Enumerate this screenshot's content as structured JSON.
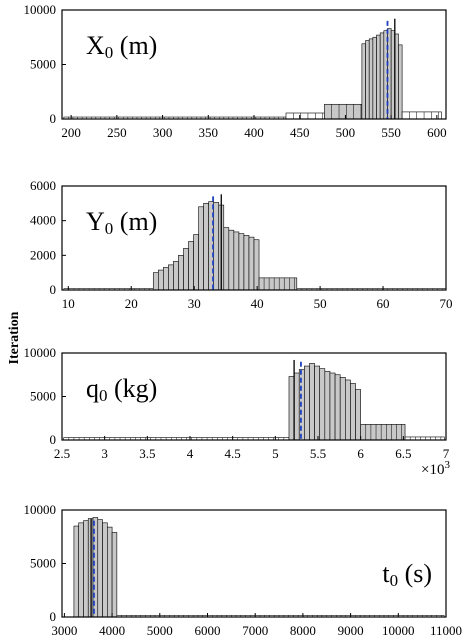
{
  "ylabel": "Iteration",
  "colors": {
    "bar_fill": "#c8c8c8",
    "bar_fill_light": "#ffffff",
    "mean_line": "#000000",
    "true_line": "#1f3fbf",
    "frame": "#000000"
  },
  "chart_data": [
    {
      "type": "bar",
      "title_main": "X",
      "title_sub": "0",
      "title_unit": " (m)",
      "title_pos": "top-left",
      "xlim": [
        190,
        610
      ],
      "ylim": [
        0,
        10000
      ],
      "xticks": [
        200,
        250,
        300,
        350,
        400,
        450,
        500,
        550,
        600
      ],
      "xtick_labels": [
        "200",
        "250",
        "300",
        "350",
        "400",
        "450",
        "500",
        "550",
        "600"
      ],
      "yticks": [
        0,
        5000,
        10000
      ],
      "ytick_labels": [
        "0",
        "5000",
        "10000"
      ],
      "bins": [
        {
          "x0": 192,
          "x1": 435,
          "count": 180,
          "step": 5
        },
        {
          "x0": 435,
          "x1": 477,
          "count": 550,
          "step": 8
        },
        {
          "x0": 477,
          "x1": 518,
          "count": 1350,
          "step": 8
        },
        {
          "x0": 518,
          "x1": 522,
          "count": 6900
        },
        {
          "x0": 522,
          "x1": 526,
          "count": 7200
        },
        {
          "x0": 526,
          "x1": 530,
          "count": 7350
        },
        {
          "x0": 530,
          "x1": 534,
          "count": 7500
        },
        {
          "x0": 534,
          "x1": 538,
          "count": 7700
        },
        {
          "x0": 538,
          "x1": 542,
          "count": 7900
        },
        {
          "x0": 542,
          "x1": 546,
          "count": 8100
        },
        {
          "x0": 546,
          "x1": 550,
          "count": 8300
        },
        {
          "x0": 550,
          "x1": 554,
          "count": 8100
        },
        {
          "x0": 554,
          "x1": 558,
          "count": 7800
        },
        {
          "x0": 558,
          "x1": 562,
          "count": 6800
        },
        {
          "x0": 562,
          "x1": 605,
          "count": 650,
          "step": 8
        }
      ],
      "true_value": 546,
      "mean_value": 554
    },
    {
      "type": "bar",
      "title_main": "Y",
      "title_sub": "0",
      "title_unit": " (m)",
      "title_pos": "top-left",
      "xlim": [
        9,
        70
      ],
      "ylim": [
        0,
        6000
      ],
      "xticks": [
        10,
        20,
        30,
        40,
        50,
        60,
        70
      ],
      "xtick_labels": [
        "10",
        "20",
        "30",
        "40",
        "50",
        "60",
        "70"
      ],
      "yticks": [
        0,
        2000,
        4000,
        6000
      ],
      "ytick_labels": [
        "0",
        "2000",
        "4000",
        "6000"
      ],
      "bins": [
        {
          "x0": 9.3,
          "x1": 23.5,
          "count": 80,
          "step": 0.8
        },
        {
          "x0": 23.5,
          "x1": 24.3,
          "count": 1000
        },
        {
          "x0": 24.3,
          "x1": 25.1,
          "count": 1150
        },
        {
          "x0": 25.1,
          "x1": 25.9,
          "count": 1300
        },
        {
          "x0": 25.9,
          "x1": 26.7,
          "count": 1450
        },
        {
          "x0": 26.7,
          "x1": 27.5,
          "count": 1650
        },
        {
          "x0": 27.5,
          "x1": 28.3,
          "count": 2000
        },
        {
          "x0": 28.3,
          "x1": 29.1,
          "count": 2400
        },
        {
          "x0": 29.1,
          "x1": 29.9,
          "count": 2800
        },
        {
          "x0": 29.9,
          "x1": 30.7,
          "count": 3200
        },
        {
          "x0": 30.7,
          "x1": 31.5,
          "count": 4800
        },
        {
          "x0": 31.5,
          "x1": 32.3,
          "count": 5000
        },
        {
          "x0": 32.3,
          "x1": 33.1,
          "count": 5100
        },
        {
          "x0": 33.1,
          "x1": 33.9,
          "count": 5050
        },
        {
          "x0": 33.9,
          "x1": 34.7,
          "count": 4900
        },
        {
          "x0": 34.7,
          "x1": 35.5,
          "count": 3600
        },
        {
          "x0": 35.5,
          "x1": 36.3,
          "count": 3450
        },
        {
          "x0": 36.3,
          "x1": 37.1,
          "count": 3350
        },
        {
          "x0": 37.1,
          "x1": 37.9,
          "count": 3250
        },
        {
          "x0": 37.9,
          "x1": 38.7,
          "count": 3150
        },
        {
          "x0": 38.7,
          "x1": 39.5,
          "count": 3050
        },
        {
          "x0": 39.5,
          "x1": 40.3,
          "count": 2900
        },
        {
          "x0": 40.3,
          "x1": 46.3,
          "count": 700,
          "step": 0.8
        },
        {
          "x0": 46.3,
          "x1": 70.0,
          "count": 80,
          "step": 0.8
        }
      ],
      "true_value": 33.0,
      "mean_value": 34.3
    },
    {
      "type": "bar",
      "title_main": "q",
      "title_sub": "0",
      "title_unit": " (kg)",
      "title_pos": "top-left",
      "xlim": [
        2.5,
        7
      ],
      "ylim": [
        0,
        10000
      ],
      "xticks": [
        2.5,
        3,
        3.5,
        4,
        4.5,
        5,
        5.5,
        6,
        6.5,
        7
      ],
      "xtick_labels": [
        "2.5",
        "3",
        "3.5",
        "4",
        "4.5",
        "5",
        "5.5",
        "6",
        "6.5",
        "7"
      ],
      "yticks": [
        0,
        5000,
        10000
      ],
      "ytick_labels": [
        "0",
        "5000",
        "10000"
      ],
      "x_multiplier_base": "×10",
      "x_multiplier_exp": "3",
      "bins": [
        {
          "x0": 2.52,
          "x1": 5.16,
          "count": 280,
          "step": 0.06
        },
        {
          "x0": 5.16,
          "x1": 5.22,
          "count": 7300
        },
        {
          "x0": 5.22,
          "x1": 5.28,
          "count": 7700
        },
        {
          "x0": 5.28,
          "x1": 5.34,
          "count": 8100
        },
        {
          "x0": 5.34,
          "x1": 5.4,
          "count": 8500
        },
        {
          "x0": 5.4,
          "x1": 5.46,
          "count": 8800
        },
        {
          "x0": 5.46,
          "x1": 5.52,
          "count": 8500
        },
        {
          "x0": 5.52,
          "x1": 5.58,
          "count": 8200
        },
        {
          "x0": 5.58,
          "x1": 5.64,
          "count": 7900
        },
        {
          "x0": 5.64,
          "x1": 5.7,
          "count": 7700
        },
        {
          "x0": 5.7,
          "x1": 5.76,
          "count": 7500
        },
        {
          "x0": 5.76,
          "x1": 5.82,
          "count": 7200
        },
        {
          "x0": 5.82,
          "x1": 5.88,
          "count": 6900
        },
        {
          "x0": 5.88,
          "x1": 5.94,
          "count": 6500
        },
        {
          "x0": 5.94,
          "x1": 6.0,
          "count": 5800
        },
        {
          "x0": 6.0,
          "x1": 6.52,
          "count": 1800,
          "step": 0.06
        },
        {
          "x0": 6.52,
          "x1": 6.98,
          "count": 350,
          "step": 0.06
        }
      ],
      "true_value": 5.3,
      "mean_value": 5.22
    },
    {
      "type": "bar",
      "title_main": "t",
      "title_sub": "0",
      "title_unit": " (s)",
      "title_pos": "right",
      "xlim": [
        2950,
        11000
      ],
      "ylim": [
        0,
        10000
      ],
      "xticks": [
        3000,
        4000,
        5000,
        6000,
        7000,
        8000,
        9000,
        10000,
        11000
      ],
      "xtick_labels": [
        "3000",
        "4000",
        "5000",
        "6000",
        "7000",
        "8000",
        "9000",
        "10000",
        "11000"
      ],
      "yticks": [
        0,
        5000,
        10000
      ],
      "ytick_labels": [
        "0",
        "5000",
        "10000"
      ],
      "bins": [
        {
          "x0": 3200,
          "x1": 3300,
          "count": 8500
        },
        {
          "x0": 3300,
          "x1": 3400,
          "count": 8800
        },
        {
          "x0": 3400,
          "x1": 3500,
          "count": 9000
        },
        {
          "x0": 3500,
          "x1": 3600,
          "count": 9200
        },
        {
          "x0": 3600,
          "x1": 3700,
          "count": 9300
        },
        {
          "x0": 3700,
          "x1": 3800,
          "count": 9100
        },
        {
          "x0": 3800,
          "x1": 3900,
          "count": 8800
        },
        {
          "x0": 3900,
          "x1": 4000,
          "count": 8400
        },
        {
          "x0": 4000,
          "x1": 4100,
          "count": 7900
        },
        {
          "x0": 4100,
          "x1": 10960,
          "count": 150,
          "step": 100
        }
      ],
      "true_value": 3620,
      "mean_value": 3560
    }
  ]
}
